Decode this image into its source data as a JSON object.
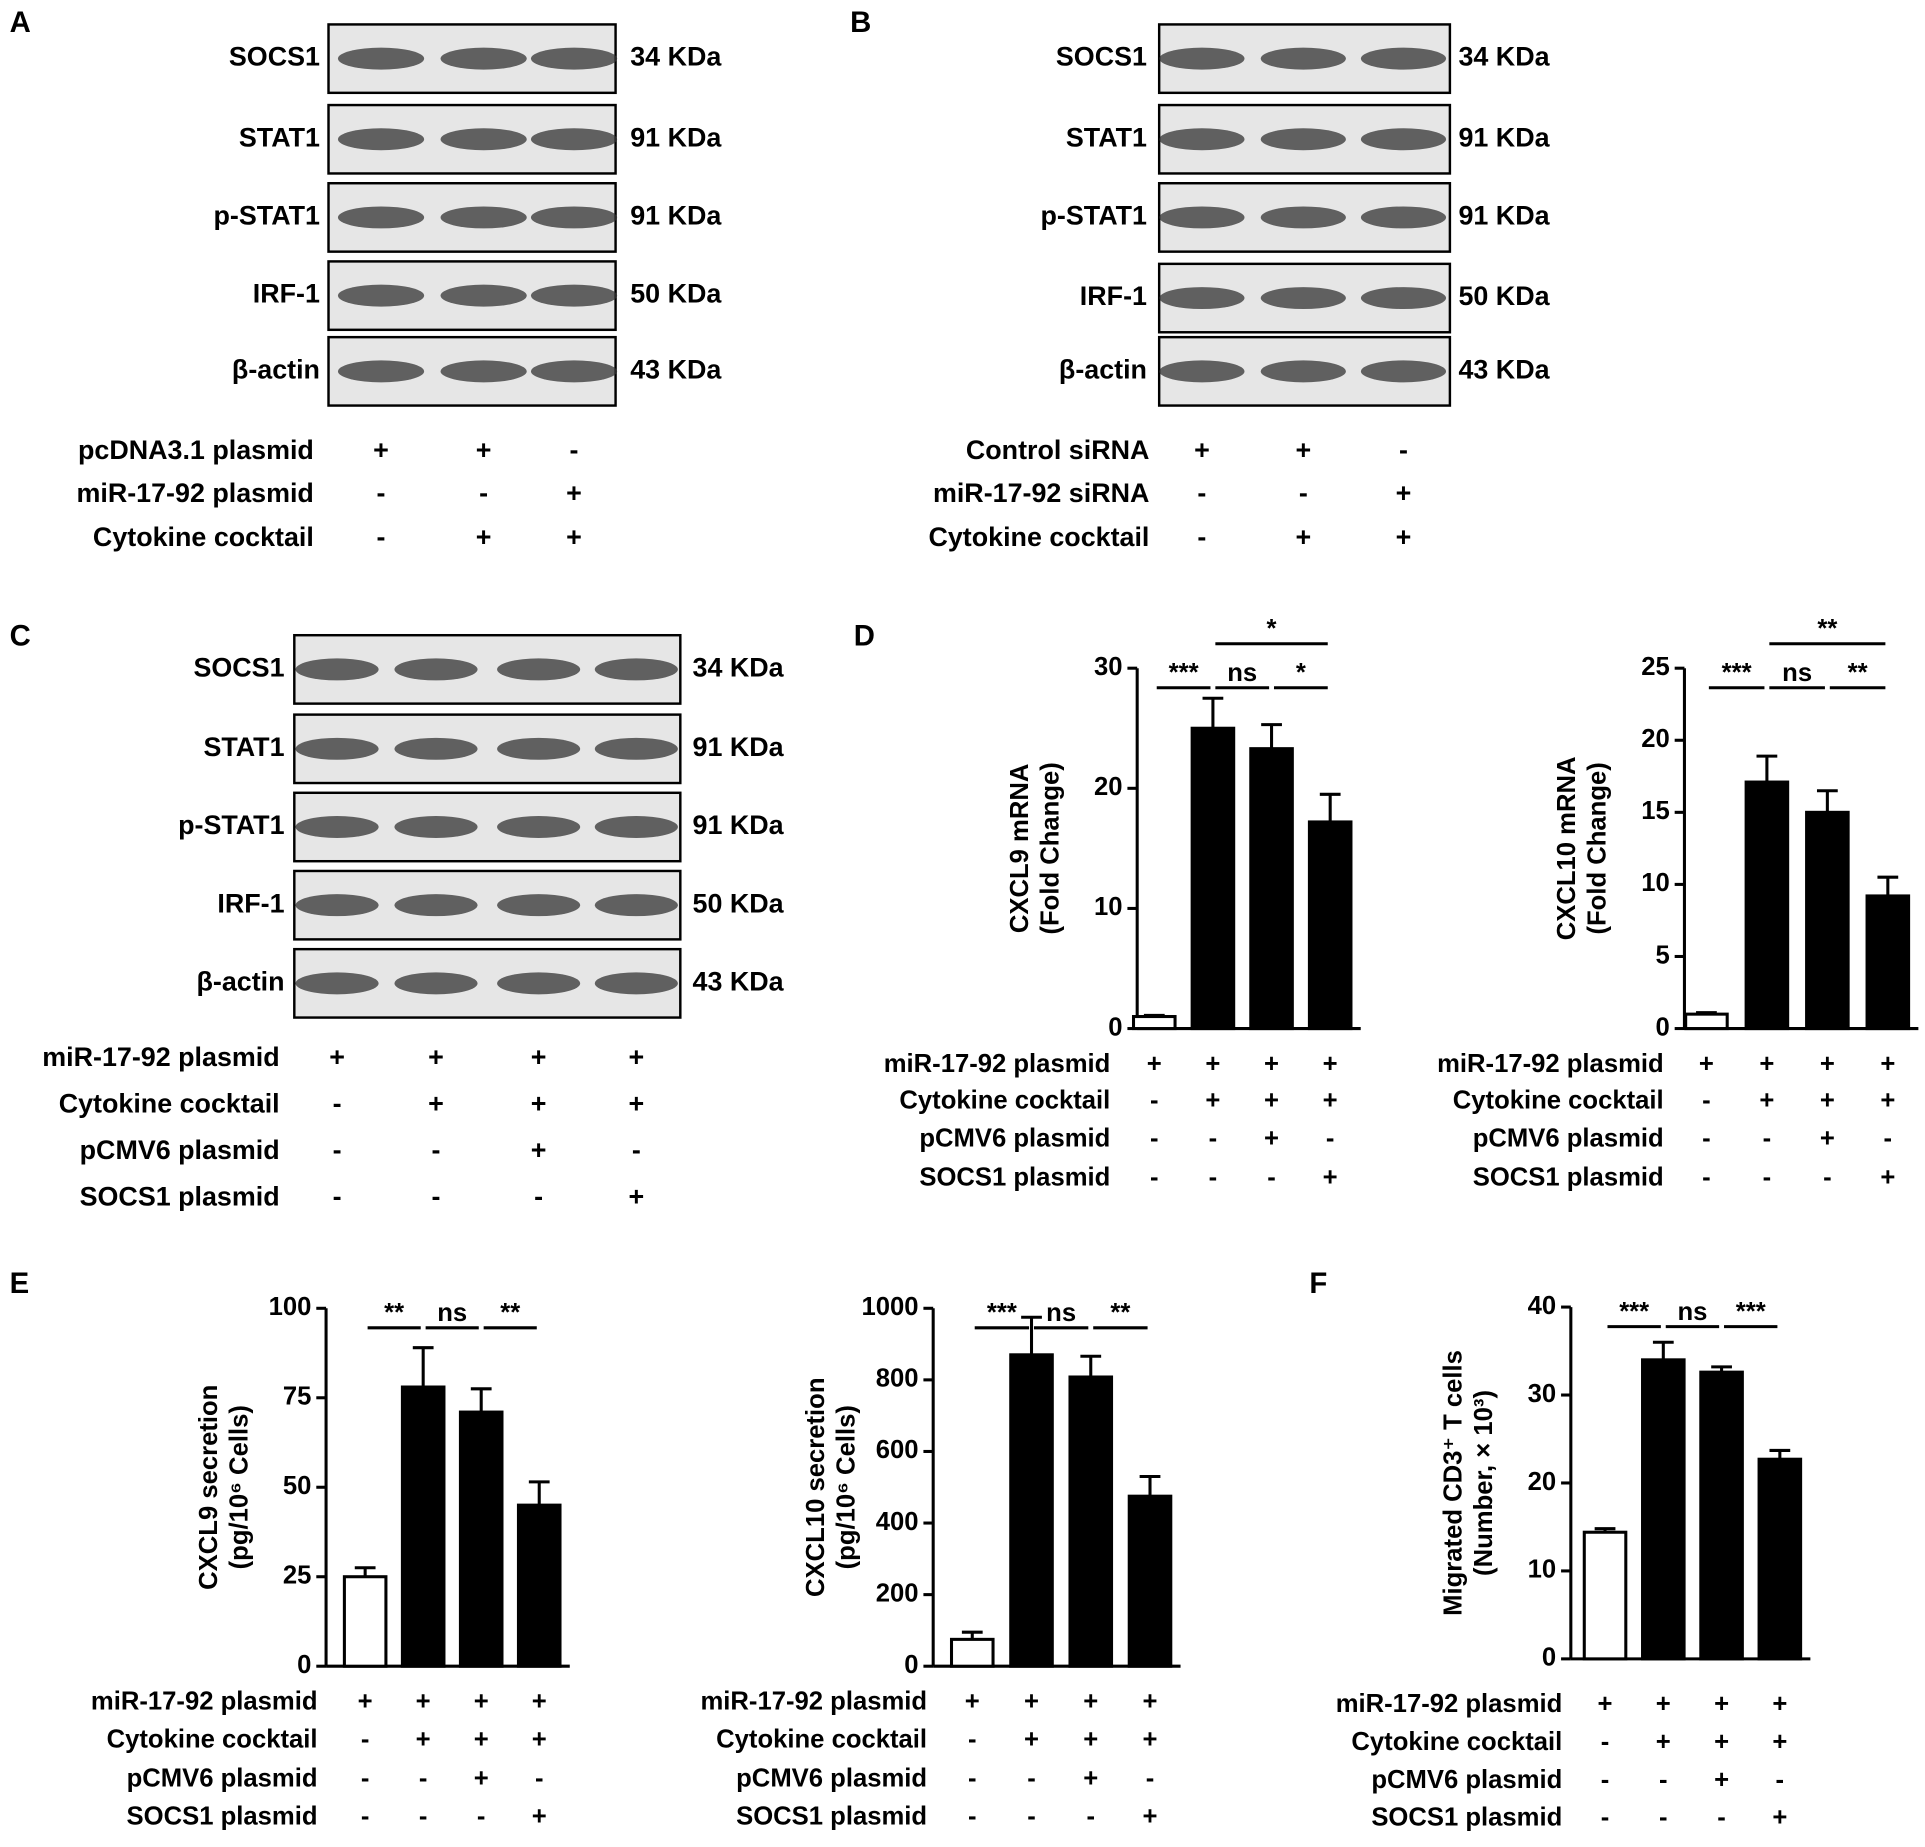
{
  "panel_labels": [
    "A",
    "B",
    "C",
    "D",
    "E",
    "F"
  ],
  "blots": [
    {
      "rows": [
        {
          "protein": "SOCS1",
          "kda": "34 KDa"
        },
        {
          "protein": "STAT1",
          "kda": "91 KDa"
        },
        {
          "protein": "p-STAT1",
          "kda": "91 KDa"
        },
        {
          "protein": "IRF-1",
          "kda": "50 KDa"
        },
        {
          "protein": "β-actin",
          "kda": "43 KDa"
        }
      ],
      "conditions": [
        {
          "label": "pcDNA3.1 plasmid",
          "signs": [
            "+",
            "+",
            "-"
          ]
        },
        {
          "label": "miR-17-92 plasmid",
          "signs": [
            "-",
            "-",
            "+"
          ]
        },
        {
          "label": "Cytokine cocktail",
          "signs": [
            "-",
            "+",
            "+"
          ]
        }
      ]
    },
    {
      "rows": [
        {
          "protein": "SOCS1",
          "kda": "34 KDa"
        },
        {
          "protein": "STAT1",
          "kda": "91 KDa"
        },
        {
          "protein": "p-STAT1",
          "kda": "91 KDa"
        },
        {
          "protein": "IRF-1",
          "kda": "50 KDa"
        },
        {
          "protein": "β-actin",
          "kda": "43 KDa"
        }
      ],
      "conditions": [
        {
          "label": "Control siRNA",
          "signs": [
            "+",
            "+",
            "-"
          ]
        },
        {
          "label": "miR-17-92 siRNA",
          "signs": [
            "-",
            "-",
            "+"
          ]
        },
        {
          "label": "Cytokine cocktail",
          "signs": [
            "-",
            "+",
            "+"
          ]
        }
      ]
    },
    {
      "rows": [
        {
          "protein": "SOCS1",
          "kda": "34 KDa"
        },
        {
          "protein": "STAT1",
          "kda": "91 KDa"
        },
        {
          "protein": "p-STAT1",
          "kda": "91 KDa"
        },
        {
          "protein": "IRF-1",
          "kda": "50 KDa"
        },
        {
          "protein": "β-actin",
          "kda": "43 KDa"
        }
      ],
      "conditions": [
        {
          "label": "miR-17-92 plasmid",
          "signs": [
            "+",
            "+",
            "+",
            "+"
          ]
        },
        {
          "label": "Cytokine cocktail",
          "signs": [
            "-",
            "+",
            "+",
            "+"
          ]
        },
        {
          "label": "pCMV6 plasmid",
          "signs": [
            "-",
            "-",
            "+",
            "-"
          ]
        },
        {
          "label": "SOCS1 plasmid",
          "signs": [
            "-",
            "-",
            "-",
            "+"
          ]
        }
      ]
    }
  ],
  "chart_data": [
    {
      "type": "bar",
      "ylabel": [
        "CXCL9 mRNA",
        "(Fold Change)"
      ],
      "values": [
        1,
        25,
        23.3,
        17.2
      ],
      "errors": [
        0.1,
        2.5,
        2,
        2.3
      ],
      "colors": [
        "#ffffff",
        "#000000",
        "#000000",
        "#000000"
      ],
      "ylim": [
        0,
        30
      ],
      "yticks": [
        0,
        10,
        20,
        30
      ],
      "significance": [
        {
          "label": "***",
          "from": 0,
          "to": 1
        },
        {
          "label": "ns",
          "from": 1,
          "to": 2
        },
        {
          "label": "*",
          "from": 2,
          "to": 3
        },
        {
          "label": "*",
          "from": 1,
          "to": 3
        }
      ],
      "conditions": [
        {
          "label": "miR-17-92 plasmid",
          "signs": [
            "+",
            "+",
            "+",
            "+"
          ]
        },
        {
          "label": "Cytokine cocktail",
          "signs": [
            "-",
            "+",
            "+",
            "+"
          ]
        },
        {
          "label": "pCMV6 plasmid",
          "signs": [
            "-",
            "-",
            "+",
            "-"
          ]
        },
        {
          "label": "SOCS1 plasmid",
          "signs": [
            "-",
            "-",
            "-",
            "+"
          ]
        }
      ]
    },
    {
      "type": "bar",
      "ylabel": [
        "CXCL10 mRNA",
        "(Fold Change)"
      ],
      "values": [
        1,
        17.1,
        15,
        9.2
      ],
      "errors": [
        0.1,
        1.8,
        1.5,
        1.3
      ],
      "colors": [
        "#ffffff",
        "#000000",
        "#000000",
        "#000000"
      ],
      "ylim": [
        0,
        25
      ],
      "yticks": [
        0,
        5,
        10,
        15,
        20,
        25
      ],
      "significance": [
        {
          "label": "***",
          "from": 0,
          "to": 1
        },
        {
          "label": "ns",
          "from": 1,
          "to": 2
        },
        {
          "label": "**",
          "from": 2,
          "to": 3
        },
        {
          "label": "**",
          "from": 1,
          "to": 3
        }
      ],
      "conditions": [
        {
          "label": "miR-17-92 plasmid",
          "signs": [
            "+",
            "+",
            "+",
            "+"
          ]
        },
        {
          "label": "Cytokine cocktail",
          "signs": [
            "-",
            "+",
            "+",
            "+"
          ]
        },
        {
          "label": "pCMV6 plasmid",
          "signs": [
            "-",
            "-",
            "+",
            "-"
          ]
        },
        {
          "label": "SOCS1 plasmid",
          "signs": [
            "-",
            "-",
            "-",
            "+"
          ]
        }
      ]
    },
    {
      "type": "bar",
      "ylabel": [
        "CXCL9 secretion",
        "(pg/10⁶ Cells)"
      ],
      "values": [
        25,
        78,
        71,
        45
      ],
      "errors": [
        2.5,
        11,
        6.5,
        6.5
      ],
      "colors": [
        "#ffffff",
        "#000000",
        "#000000",
        "#000000"
      ],
      "ylim": [
        0,
        100
      ],
      "yticks": [
        0,
        25,
        50,
        75,
        100
      ],
      "significance": [
        {
          "label": "**",
          "from": 0,
          "to": 1
        },
        {
          "label": "ns",
          "from": 1,
          "to": 2
        },
        {
          "label": "**",
          "from": 2,
          "to": 3
        }
      ],
      "conditions": [
        {
          "label": "miR-17-92 plasmid",
          "signs": [
            "+",
            "+",
            "+",
            "+"
          ]
        },
        {
          "label": "Cytokine cocktail",
          "signs": [
            "-",
            "+",
            "+",
            "+"
          ]
        },
        {
          "label": "pCMV6 plasmid",
          "signs": [
            "-",
            "-",
            "+",
            "-"
          ]
        },
        {
          "label": "SOCS1 plasmid",
          "signs": [
            "-",
            "-",
            "-",
            "+"
          ]
        }
      ]
    },
    {
      "type": "bar",
      "ylabel": [
        "CXCL10 secretion",
        "(pg/10⁶ Cells)"
      ],
      "values": [
        75,
        870,
        808,
        475
      ],
      "errors": [
        20,
        105,
        58,
        55
      ],
      "colors": [
        "#ffffff",
        "#000000",
        "#000000",
        "#000000"
      ],
      "ylim": [
        0,
        1000
      ],
      "yticks": [
        0,
        200,
        400,
        600,
        800,
        1000
      ],
      "significance": [
        {
          "label": "***",
          "from": 0,
          "to": 1
        },
        {
          "label": "ns",
          "from": 1,
          "to": 2
        },
        {
          "label": "**",
          "from": 2,
          "to": 3
        }
      ],
      "conditions": [
        {
          "label": "miR-17-92 plasmid",
          "signs": [
            "+",
            "+",
            "+",
            "+"
          ]
        },
        {
          "label": "Cytokine cocktail",
          "signs": [
            "-",
            "+",
            "+",
            "+"
          ]
        },
        {
          "label": "pCMV6 plasmid",
          "signs": [
            "-",
            "-",
            "+",
            "-"
          ]
        },
        {
          "label": "SOCS1 plasmid",
          "signs": [
            "-",
            "-",
            "-",
            "+"
          ]
        }
      ]
    },
    {
      "type": "bar",
      "ylabel": [
        "Migrated CD3⁺ T cells",
        "(Number, × 10³)"
      ],
      "values": [
        14.4,
        34,
        32.6,
        22.7
      ],
      "errors": [
        0.4,
        2,
        0.6,
        1
      ],
      "colors": [
        "#ffffff",
        "#000000",
        "#000000",
        "#000000"
      ],
      "ylim": [
        0,
        40
      ],
      "yticks": [
        0,
        10,
        20,
        30,
        40
      ],
      "significance": [
        {
          "label": "***",
          "from": 0,
          "to": 1
        },
        {
          "label": "ns",
          "from": 1,
          "to": 2
        },
        {
          "label": "***",
          "from": 2,
          "to": 3
        }
      ],
      "conditions": [
        {
          "label": "miR-17-92 plasmid",
          "signs": [
            "+",
            "+",
            "+",
            "+"
          ]
        },
        {
          "label": "Cytokine cocktail",
          "signs": [
            "-",
            "+",
            "+",
            "+"
          ]
        },
        {
          "label": "pCMV6 plasmid",
          "signs": [
            "-",
            "-",
            "+",
            "-"
          ]
        },
        {
          "label": "SOCS1 plasmid",
          "signs": [
            "-",
            "-",
            "-",
            "+"
          ]
        }
      ]
    }
  ]
}
